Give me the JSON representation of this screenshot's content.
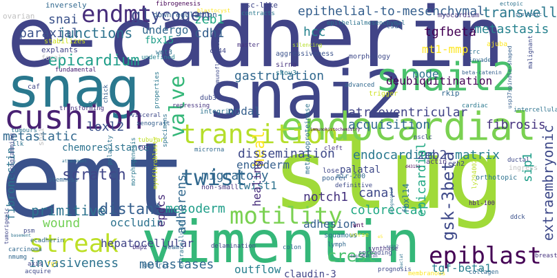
{
  "words": [
    {
      "text": "e-cadherin",
      "color": "#414487",
      "weight": 1.0
    },
    {
      "text": "slug",
      "color": "#a0da39",
      "weight": 0.95
    },
    {
      "text": "emt",
      "color": "#3b528b",
      "weight": 0.95
    },
    {
      "text": "vimentin",
      "color": "#35b779",
      "weight": 0.72
    },
    {
      "text": "snai2",
      "color": "#404688",
      "weight": 0.8
    },
    {
      "text": "snag",
      "color": "#2a788e",
      "weight": 0.75
    },
    {
      "text": "endocardial",
      "color": "#7ad151",
      "weight": 0.58
    },
    {
      "text": "snail2",
      "color": "#4ac16d",
      "weight": 0.55
    },
    {
      "text": "cushion",
      "color": "#482173",
      "weight": 0.5
    },
    {
      "text": "transition",
      "color": "#b5de2b",
      "weight": 0.45
    },
    {
      "text": "streak",
      "color": "#bddf26",
      "weight": 0.45
    },
    {
      "text": "motility",
      "color": "#7ad151",
      "weight": 0.4
    },
    {
      "text": "epiblast",
      "color": "#440154",
      "weight": 0.4
    },
    {
      "text": "twist",
      "color": "#31688e",
      "weight": 0.4
    },
    {
      "text": "endmt",
      "color": "#472d7b",
      "weight": 0.35
    },
    {
      "text": "gsk-3beta",
      "color": "#3e4989",
      "weight": 0.3
    },
    {
      "text": "valve",
      "color": "#35b779",
      "weight": 0.3
    },
    {
      "text": "heal",
      "color": "#fde725",
      "weight": 0.3
    },
    {
      "text": "epicardial",
      "color": "#22a884",
      "weight": 0.25
    },
    {
      "text": "glycogen",
      "color": "#3e4989",
      "weight": 0.28
    },
    {
      "text": "epicardium",
      "color": "#1f9e89",
      "weight": 0.25
    },
    {
      "text": "snai",
      "color": "#3b528b",
      "weight": 0.2
    },
    {
      "text": "paraxial",
      "color": "#3b528b",
      "weight": 0.2
    },
    {
      "text": "junctions",
      "color": "#2c728e",
      "weight": 0.25
    },
    {
      "text": "zeb1",
      "color": "#22a884",
      "weight": 0.2
    },
    {
      "text": "cdh1",
      "color": "#355f8d",
      "weight": 0.2
    },
    {
      "text": "hcc",
      "color": "#26828e",
      "weight": 0.2
    },
    {
      "text": "epithelial-to-mesenchymal",
      "color": "#355f8d",
      "weight": 0.25
    },
    {
      "text": "metastasis",
      "color": "#26828e",
      "weight": 0.2
    },
    {
      "text": "transwell",
      "color": "#2a788e",
      "weight": 0.2
    },
    {
      "text": "tgfbeta",
      "color": "#440154",
      "weight": 0.18
    },
    {
      "text": "mt1-mmp",
      "color": "#fde725",
      "weight": 0.2
    },
    {
      "text": "undergo",
      "color": "#31688e",
      "weight": 0.15
    },
    {
      "text": "fbx15",
      "color": "#1f9e89",
      "weight": 0.15
    },
    {
      "text": "gastrulation",
      "color": "#31688e",
      "weight": 0.22
    },
    {
      "text": "loxl2",
      "color": "#3b528b",
      "weight": 0.2
    },
    {
      "text": "nodal",
      "color": "#355f8d",
      "weight": 0.18
    },
    {
      "text": "node",
      "color": "#2c728e",
      "weight": 0.18
    },
    {
      "text": "deubiquitination",
      "color": "#440154",
      "weight": 0.2
    },
    {
      "text": "atrioventricular",
      "color": "#414487",
      "weight": 0.22
    },
    {
      "text": "acquisition",
      "color": "#31688e",
      "weight": 0.2
    },
    {
      "text": "fibrosis",
      "color": "#46337f",
      "weight": 0.2
    },
    {
      "text": "extraembryonic",
      "color": "#3e4989",
      "weight": 0.2
    },
    {
      "text": "sip1",
      "color": "#1f9e89",
      "weight": 0.2
    },
    {
      "text": "dissemination",
      "color": "#3e4989",
      "weight": 0.2
    },
    {
      "text": "endocardium",
      "color": "#2a788e",
      "weight": 0.2
    },
    {
      "text": "zeb2",
      "color": "#3e4989",
      "weight": 0.18
    },
    {
      "text": "matrix",
      "color": "#277f8e",
      "weight": 0.18
    },
    {
      "text": "endoderm",
      "color": "#355f8d",
      "weight": 0.18
    },
    {
      "text": "migratory",
      "color": "#31688e",
      "weight": 0.2
    },
    {
      "text": "fibronectin",
      "color": "#2c728e",
      "weight": 0.2
    },
    {
      "text": "scratch",
      "color": "#404688",
      "weight": 0.2
    },
    {
      "text": "epdcs",
      "color": "#472d7b",
      "weight": 0.18
    },
    {
      "text": "adherens",
      "color": "#31688e",
      "weight": 0.2
    },
    {
      "text": "twist1",
      "color": "#2c728e",
      "weight": 0.18
    },
    {
      "text": "notch1",
      "color": "#46337f",
      "weight": 0.18
    },
    {
      "text": "canal",
      "color": "#3e4989",
      "weight": 0.18
    },
    {
      "text": "colorectal",
      "color": "#22a884",
      "weight": 0.2
    },
    {
      "text": "primitive",
      "color": "#2c728e",
      "weight": 0.2
    },
    {
      "text": "distant",
      "color": "#355f8d",
      "weight": 0.2
    },
    {
      "text": "mesoderm",
      "color": "#1f9e89",
      "weight": 0.2
    },
    {
      "text": "wound",
      "color": "#73d056",
      "weight": 0.2
    },
    {
      "text": "occludin",
      "color": "#2c728e",
      "weight": 0.18
    },
    {
      "text": "adhesion",
      "color": "#355f8d",
      "weight": 0.18
    },
    {
      "text": "hepatocellular",
      "color": "#414487",
      "weight": 0.18
    },
    {
      "text": "invasiveness",
      "color": "#2c728e",
      "weight": 0.2
    },
    {
      "text": "metastases",
      "color": "#31688e",
      "weight": 0.2
    },
    {
      "text": "outflow",
      "color": "#277f8e",
      "weight": 0.2
    },
    {
      "text": "crest",
      "color": "#4ac16d",
      "weight": 0.2
    },
    {
      "text": "claudin-3",
      "color": "#414487",
      "weight": 0.18
    },
    {
      "text": "tgf-beta1",
      "color": "#277f8e",
      "weight": 0.2
    },
    {
      "text": "chemoresistance",
      "color": "#2c728e",
      "weight": 0.15
    },
    {
      "text": "metastatic",
      "color": "#31688e",
      "weight": 0.18
    },
    {
      "text": "healing",
      "color": "#472d7b",
      "weight": 0.2
    },
    {
      "text": "fbxl14",
      "color": "#2c728e",
      "weight": 0.12
    },
    {
      "text": "palatal",
      "color": "#3e4989",
      "weight": 0.12
    },
    {
      "text": "ovarian",
      "color": "#c0c0c0",
      "weight": 0.1
    },
    {
      "text": "snai",
      "color": "#c0c0c0",
      "weight": 0.1
    }
  ],
  "minor_words": [
    "inversely",
    "fibrogenesis",
    "blastocyst",
    "csc-like",
    "downregulation",
    "contracts",
    "epithelialmesenchymal",
    "myocardium",
    "ectopic",
    "proteomic",
    "stabilizes",
    "wnt3",
    "cd44",
    "aggressiveness",
    "lsd1",
    "explants",
    "focal",
    "fundamental",
    "undefined",
    "master",
    "silencing",
    "crc",
    "invade",
    "beta-catenin",
    "usp37spindle-shaped",
    "malignant",
    "ajuba",
    "caf",
    "morphology",
    "sirna",
    "skov3",
    "advanced",
    "trigger",
    "dub3",
    "integrin",
    "rkip",
    "intercellular",
    "cardiac",
    "transforming",
    "visceral",
    "xenograft",
    "ecm",
    "chick",
    "properties",
    "repressing",
    "immunofluorescence",
    "specimens",
    "microrna",
    "egf",
    "tubular",
    "immunohistochemistry",
    "nsclc",
    "cleft",
    "tumours",
    "ilk",
    "polarity",
    "stemness",
    "reprogramming",
    "morphogenesis",
    "myofibroblasts",
    "metalloproteinase",
    "definitive",
    "mir-200",
    "lose",
    "poorer",
    "actin",
    "d43152",
    "ezh2",
    "ductal",
    "ingress",
    "orthotopic",
    "ly294002",
    "hbl-100",
    "wnt",
    "worse",
    "squamous",
    "lymph",
    "synthase",
    "degradation",
    "axin2",
    "basement",
    "psm",
    "ecadherin",
    "tumorigenic",
    "carcinoma",
    "nmumg",
    "axis",
    "fgf",
    "acquire",
    "attachment",
    "gastric",
    "bmp2",
    "extracellular",
    "non-small",
    "delamination",
    "colon",
    "seam",
    "spreading",
    "prognosis",
    "membranous",
    "collagen",
    "breast",
    "ddck",
    "prognostic",
    "baclat",
    "e5"
  ]
}
